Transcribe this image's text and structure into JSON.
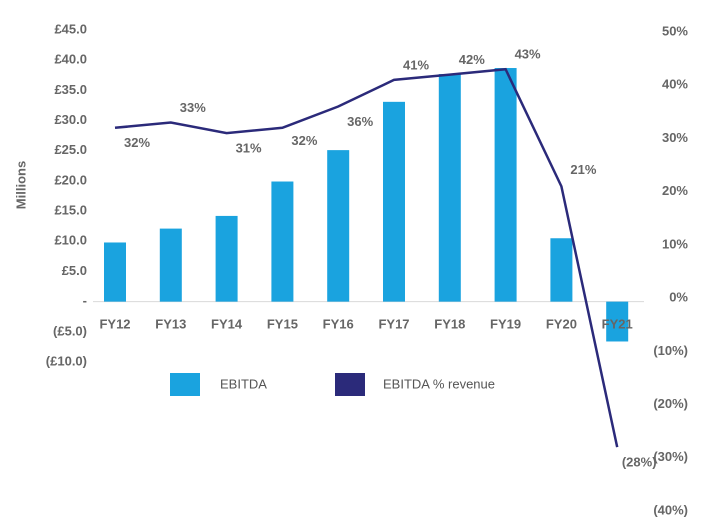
{
  "chart_data": {
    "type": "bar-line",
    "y_axis_label": "Millions",
    "categories": [
      "FY12",
      "FY13",
      "FY14",
      "FY15",
      "FY16",
      "FY17",
      "FY18",
      "FY19",
      "FY20",
      "FY21"
    ],
    "series": [
      {
        "name": "EBITDA",
        "type": "bar",
        "color": "#1aa3df",
        "values": [
          9.8,
          12.1,
          14.2,
          19.9,
          25.1,
          33.1,
          37.7,
          38.7,
          10.5,
          -6.6
        ]
      },
      {
        "name": "EBITDA % revenue",
        "type": "line",
        "axis": "y2",
        "color": "#2b2a7a",
        "values": [
          32,
          33,
          31,
          32,
          36,
          41,
          42,
          43,
          21,
          -28
        ],
        "value_labels": [
          "32%",
          "33%",
          "31%",
          "32%",
          "36%",
          "41%",
          "42%",
          "43%",
          "21%",
          "(28%)"
        ]
      }
    ],
    "ylim": [
      -10,
      45
    ],
    "yticks": [
      {
        "value": -10,
        "label": "(£10.0)"
      },
      {
        "value": -5,
        "label": "(£5.0)"
      },
      {
        "value": 0,
        "label": "-"
      },
      {
        "value": 5,
        "label": "£5.0"
      },
      {
        "value": 10,
        "label": "£10.0"
      },
      {
        "value": 15,
        "label": "£15.0"
      },
      {
        "value": 20,
        "label": "£20.0"
      },
      {
        "value": 25,
        "label": "£25.0"
      },
      {
        "value": 30,
        "label": "£30.0"
      },
      {
        "value": 35,
        "label": "£35.0"
      },
      {
        "value": 40,
        "label": "£40.0"
      },
      {
        "value": 45,
        "label": "£45.0"
      }
    ],
    "y2lim": [
      -40,
      50
    ],
    "y2ticks": [
      {
        "value": -40,
        "label": "(40%)"
      },
      {
        "value": -30,
        "label": "(30%)"
      },
      {
        "value": -20,
        "label": "(20%)"
      },
      {
        "value": -10,
        "label": "(10%)"
      },
      {
        "value": 0,
        "label": "0%"
      },
      {
        "value": 10,
        "label": "10%"
      },
      {
        "value": 20,
        "label": "20%"
      },
      {
        "value": 30,
        "label": "30%"
      },
      {
        "value": 40,
        "label": "40%"
      },
      {
        "value": 50,
        "label": "50%"
      }
    ]
  }
}
